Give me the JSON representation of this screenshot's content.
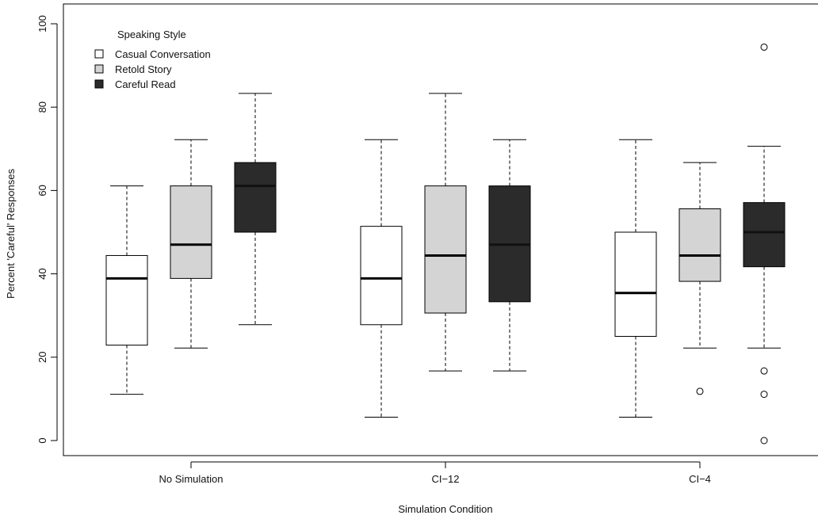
{
  "chart_data": {
    "type": "boxplot",
    "xlabel": "Simulation Condition",
    "ylabel": "Percent 'Careful' Responses",
    "ylim": [
      0,
      100
    ],
    "yticks": [
      "0",
      "20",
      "40",
      "60",
      "80",
      "100"
    ],
    "categories": [
      "No Simulation",
      "CI−12",
      "CI−4"
    ],
    "legend": {
      "title": "Speaking Style",
      "placement": "top-left"
    },
    "series": [
      {
        "name": "Casual Conversation",
        "color": "#ffffff",
        "boxes": [
          {
            "whisker_low": 11.1,
            "q1": 22.9,
            "median": 38.9,
            "q3": 44.4,
            "whisker_high": 61.1,
            "outliers": []
          },
          {
            "whisker_low": 5.6,
            "q1": 27.8,
            "median": 38.9,
            "q3": 51.4,
            "whisker_high": 72.2,
            "outliers": []
          },
          {
            "whisker_low": 5.6,
            "q1": 25.0,
            "median": 35.4,
            "q3": 50.0,
            "whisker_high": 72.2,
            "outliers": []
          }
        ]
      },
      {
        "name": "Retold Story",
        "color": "#d4d4d4",
        "boxes": [
          {
            "whisker_low": 22.2,
            "q1": 38.9,
            "median": 47.0,
            "q3": 61.1,
            "whisker_high": 72.2,
            "outliers": []
          },
          {
            "whisker_low": 16.7,
            "q1": 30.6,
            "median": 44.4,
            "q3": 61.1,
            "whisker_high": 83.3,
            "outliers": []
          },
          {
            "whisker_low": 22.2,
            "q1": 38.2,
            "median": 44.4,
            "q3": 55.6,
            "whisker_high": 66.7,
            "outliers": [
              11.8
            ]
          }
        ]
      },
      {
        "name": "Careful Read",
        "color": "#2b2b2b",
        "boxes": [
          {
            "whisker_low": 27.8,
            "q1": 50.0,
            "median": 61.1,
            "q3": 66.7,
            "whisker_high": 83.3,
            "outliers": []
          },
          {
            "whisker_low": 16.7,
            "q1": 33.3,
            "median": 47.0,
            "q3": 61.1,
            "whisker_high": 72.2,
            "outliers": []
          },
          {
            "whisker_low": 22.2,
            "q1": 41.7,
            "median": 50.0,
            "q3": 57.1,
            "whisker_high": 70.6,
            "outliers": [
              94.4,
              16.7,
              11.1,
              0.0
            ]
          }
        ]
      }
    ]
  }
}
